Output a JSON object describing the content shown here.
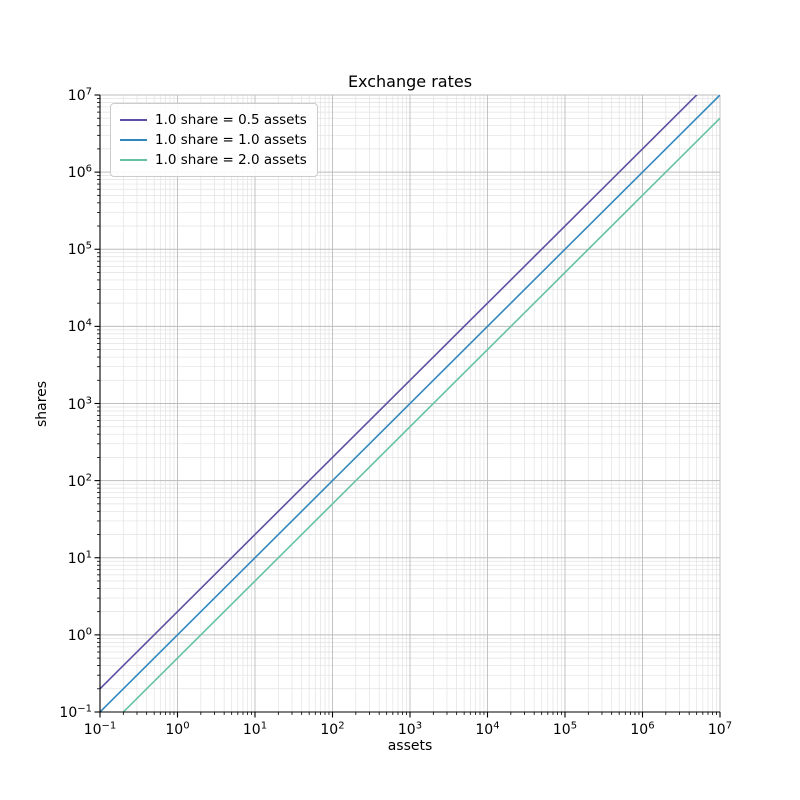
{
  "chart_data": {
    "type": "line",
    "title": "Exchange rates",
    "xlabel": "assets",
    "ylabel": "shares",
    "xscale": "log",
    "yscale": "log",
    "xlim": [
      0.1,
      10000000
    ],
    "ylim": [
      0.1,
      10000000
    ],
    "grid": "major-and-minor",
    "legend_position": "upper left",
    "x_tick_exponents": [
      -1,
      0,
      1,
      2,
      3,
      4,
      5,
      6,
      7
    ],
    "y_tick_exponents": [
      -1,
      0,
      1,
      2,
      3,
      4,
      5,
      6,
      7
    ],
    "series": [
      {
        "label": "1.0 share = 0.5 assets",
        "color": "#5e4fa2",
        "assets_per_share": 0.5,
        "points": [
          [
            0.1,
            0.2
          ],
          [
            10000000,
            20000000
          ]
        ]
      },
      {
        "label": "1.0 share = 1.0 assets",
        "color": "#3288bd",
        "assets_per_share": 1.0,
        "points": [
          [
            0.1,
            0.1
          ],
          [
            10000000,
            10000000
          ]
        ]
      },
      {
        "label": "1.0 share = 2.0 assets",
        "color": "#66c2a5",
        "assets_per_share": 2.0,
        "points": [
          [
            0.1,
            0.05
          ],
          [
            10000000,
            5000000
          ]
        ]
      }
    ]
  },
  "colors": {
    "background": "#ffffff",
    "spine": "#000000",
    "tick": "#000000",
    "grid_major": "#bdbdbd",
    "grid_minor": "#e2e2e2",
    "legend_border": "#cccccc",
    "text": "#000000"
  }
}
